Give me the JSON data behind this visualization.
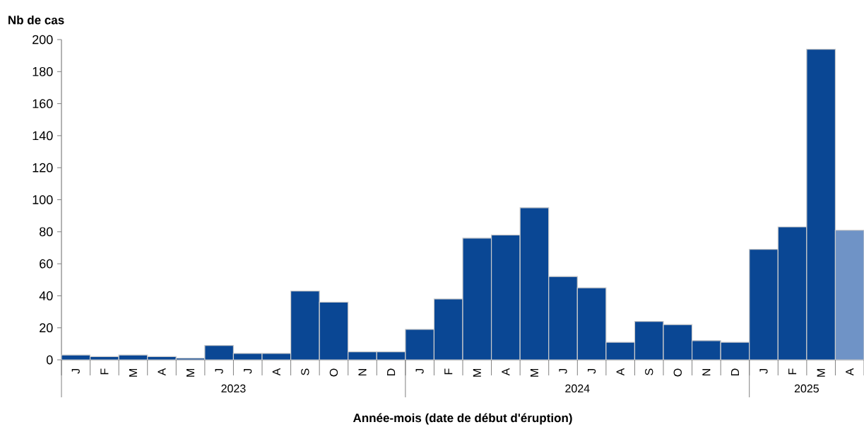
{
  "chart_data": {
    "type": "bar",
    "ylabel": "Nb de cas",
    "xlabel": "Année-mois (date de début d'éruption)",
    "categories": [
      "J",
      "F",
      "M",
      "A",
      "M",
      "J",
      "J",
      "A",
      "S",
      "O",
      "N",
      "D",
      "J",
      "F",
      "M",
      "A",
      "M",
      "J",
      "J",
      "A",
      "S",
      "O",
      "N",
      "D",
      "J",
      "F",
      "M",
      "A"
    ],
    "values": [
      3,
      2,
      3,
      2,
      1,
      9,
      4,
      4,
      43,
      36,
      5,
      5,
      19,
      38,
      76,
      78,
      95,
      52,
      45,
      11,
      24,
      22,
      12,
      11,
      69,
      83,
      194,
      81
    ],
    "colors": [
      "#0a4794",
      "#0a4794",
      "#0a4794",
      "#0a4794",
      "#0a4794",
      "#0a4794",
      "#0a4794",
      "#0a4794",
      "#0a4794",
      "#0a4794",
      "#0a4794",
      "#0a4794",
      "#0a4794",
      "#0a4794",
      "#0a4794",
      "#0a4794",
      "#0a4794",
      "#0a4794",
      "#0a4794",
      "#0a4794",
      "#0a4794",
      "#0a4794",
      "#0a4794",
      "#0a4794",
      "#0a4794",
      "#0a4794",
      "#0a4794",
      "#6f93c6"
    ],
    "annotations": [
      "2023",
      "2024",
      "2025"
    ],
    "ylim": [
      0,
      200
    ],
    "yticks": [
      0,
      20,
      40,
      60,
      80,
      100,
      120,
      140,
      160,
      180,
      200
    ],
    "grid": false
  }
}
